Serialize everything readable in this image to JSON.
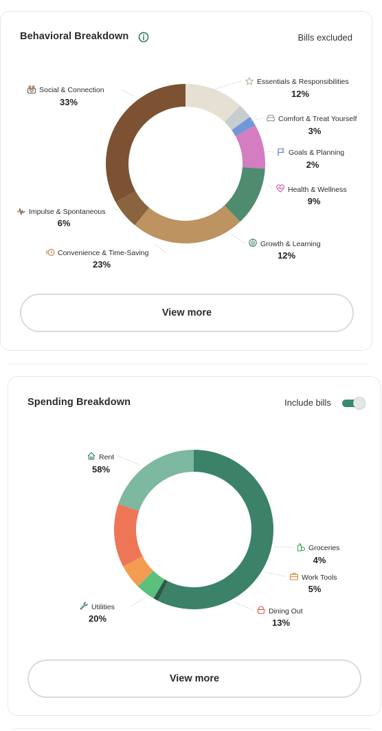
{
  "behavioral": {
    "title": "Behavioral Breakdown",
    "note": "Bills excluded",
    "view_more_label": "View more"
  },
  "spending": {
    "title": "Spending Breakdown",
    "toggle_label": "Include bills",
    "toggle_on": true,
    "view_more_label": "View more"
  },
  "chart_data": [
    {
      "type": "pie",
      "title": "Behavioral Breakdown",
      "unit": "%",
      "series": [
        {
          "name": "Essentials & Responsibilities",
          "value": 12,
          "label": "12%",
          "color": "#e6e0d3",
          "icon": "star-icon"
        },
        {
          "name": "Comfort & Treat Yourself",
          "value": 3,
          "label": "3%",
          "color": "#c8cdd0",
          "icon": "sofa-icon"
        },
        {
          "name": "Goals & Planning",
          "value": 2,
          "label": "2%",
          "color": "#7296da",
          "icon": "flag-icon"
        },
        {
          "name": "Health & Wellness",
          "value": 9,
          "label": "9%",
          "color": "#d47dc0",
          "icon": "heart-pulse-icon"
        },
        {
          "name": "Growth & Learning",
          "value": 12,
          "label": "12%",
          "color": "#4f8b6e",
          "icon": "brain-icon"
        },
        {
          "name": "Convenience & Time-Saving",
          "value": 23,
          "label": "23%",
          "color": "#bc9361",
          "icon": "fast-clock-icon"
        },
        {
          "name": "Impulse & Spontaneous",
          "value": 6,
          "label": "6%",
          "color": "#8a633f",
          "icon": "pulse-icon"
        },
        {
          "name": "Social & Connection",
          "value": 33,
          "label": "33%",
          "color": "#7c5232",
          "icon": "people-icon"
        }
      ]
    },
    {
      "type": "pie",
      "title": "Spending Breakdown",
      "unit": "%",
      "series": [
        {
          "name": "Rent",
          "value": 58,
          "label": "58%",
          "color": "#3b8269",
          "icon": "home-icon"
        },
        {
          "name": "",
          "value": 1,
          "label": "",
          "color": "#2d5a48",
          "icon": ""
        },
        {
          "name": "Groceries",
          "value": 4,
          "label": "4%",
          "color": "#5cc07d",
          "icon": "groceries-icon"
        },
        {
          "name": "Work Tools",
          "value": 5,
          "label": "5%",
          "color": "#f29d52",
          "icon": "briefcase-icon"
        },
        {
          "name": "Dining Out",
          "value": 13,
          "label": "13%",
          "color": "#ee7657",
          "icon": "dining-icon"
        },
        {
          "name": "Utilities",
          "value": 20,
          "label": "20%",
          "color": "#7db8a0",
          "icon": "wrench-icon"
        }
      ]
    }
  ]
}
